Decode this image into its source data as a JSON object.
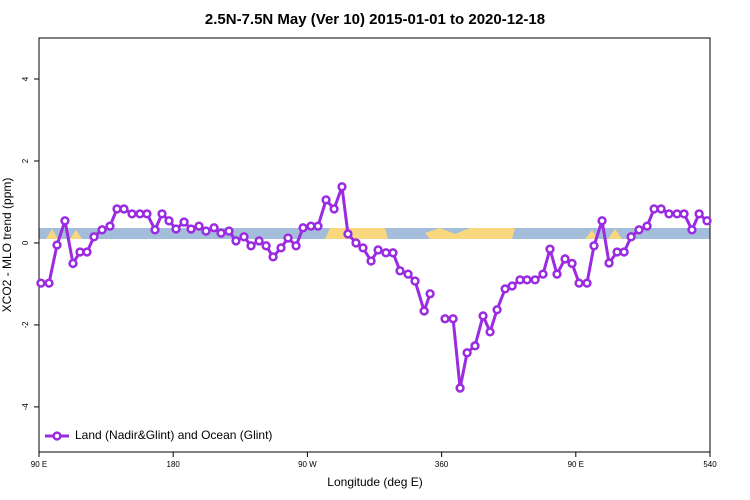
{
  "chart_data": {
    "type": "line",
    "title": "2.5N-7.5N May (Ver 10)   2015-01-01 to 2020-12-18",
    "x_label": "Longitude (deg E)",
    "y_label": "XCO2 - MLO trend (ppm)",
    "x": [
      91.3,
      96.7,
      102.1,
      107.4,
      112.8,
      117.5,
      122.2,
      126.9,
      132.3,
      137.6,
      142.3,
      147.0,
      152.4,
      157.7,
      162.4,
      167.8,
      172.5,
      177.2,
      181.9,
      187.3,
      192.0,
      197.3,
      202.0,
      207.4,
      212.1,
      217.4,
      222.1,
      227.5,
      232.2,
      237.6,
      242.3,
      247.0,
      252.3,
      257.0,
      262.4,
      267.1,
      272.4,
      277.1,
      282.5,
      287.9,
      293.2,
      297.2,
      302.6,
      307.3,
      312.7,
      317.4,
      322.7,
      327.4,
      332.1,
      337.5,
      342.2,
      348.3,
      352.3,
      357.5,
      362.3,
      367.7,
      372.4,
      377.1,
      382.4,
      387.8,
      392.5,
      397.2,
      402.6,
      407.3,
      412.6,
      417.3,
      422.7,
      428.0,
      432.7,
      437.4,
      442.8,
      447.5,
      452.2,
      457.5,
      462.2,
      467.6,
      472.3,
      477.7,
      482.4,
      487.1,
      492.4,
      497.8,
      502.5,
      507.2,
      512.5,
      517.9,
      522.6,
      527.9,
      532.7,
      538.0
    ],
    "series": [
      {
        "name": "Land (Nadir&Glint) and Ocean (Glint)",
        "color": "#9a2be0",
        "values": [
          -0.98,
          -0.98,
          -0.05,
          0.54,
          -0.5,
          -0.22,
          -0.22,
          0.15,
          0.32,
          0.41,
          0.83,
          0.83,
          0.71,
          0.71,
          0.71,
          0.32,
          0.71,
          0.54,
          0.34,
          0.51,
          0.34,
          0.41,
          0.29,
          0.37,
          0.24,
          0.29,
          0.05,
          0.15,
          -0.07,
          0.05,
          -0.07,
          -0.34,
          -0.12,
          0.12,
          -0.07,
          0.37,
          0.41,
          0.41,
          1.05,
          0.83,
          1.37,
          0.22,
          0.0,
          -0.12,
          -0.44,
          -0.17,
          -0.24,
          -0.24,
          -0.68,
          -0.76,
          -0.93,
          -1.66,
          -1.24,
          null,
          -1.85,
          -1.85,
          -3.54,
          -2.68,
          -2.51,
          -1.78,
          -2.17,
          -1.63,
          -1.12,
          -1.05,
          -0.9,
          -0.9,
          -0.9,
          -0.76,
          -0.15,
          -0.76,
          -0.39,
          -0.5,
          -0.98,
          -0.98,
          -0.07,
          0.54,
          -0.49,
          -0.22,
          -0.22,
          0.15,
          0.32,
          0.41,
          0.83,
          0.83,
          0.71,
          0.71,
          0.71,
          0.32,
          0.71,
          0.54
        ]
      }
    ],
    "xlim": [
      90,
      540
    ],
    "xticks": [
      {
        "value": 90,
        "label": "90 E"
      },
      180,
      {
        "value": 270,
        "label": "90 W"
      },
      360,
      {
        "value": 450,
        "label": "90 E"
      },
      540
    ],
    "ylim": [
      -5.1,
      5
    ],
    "yticks": [
      -4,
      -2,
      0,
      2,
      4
    ],
    "legend": "bottom-left",
    "grid": false
  }
}
